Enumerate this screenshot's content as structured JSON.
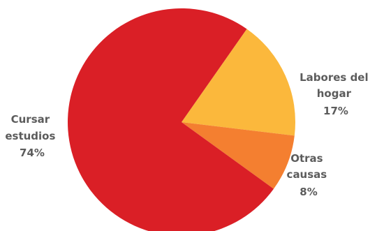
{
  "chart_data": {
    "type": "pie",
    "slices": [
      {
        "name": "Labores del hogar",
        "label_lines": [
          "Labores del",
          "hogar"
        ],
        "pct_text": "17%",
        "value": 17,
        "color": "#fbb83c"
      },
      {
        "name": "Otras causas",
        "label_lines": [
          "Otras",
          "causas"
        ],
        "pct_text": "8%",
        "value": 8,
        "color": "#f47f30"
      },
      {
        "name": "Cursar estudios",
        "label_lines": [
          "Cursar",
          "estudios"
        ],
        "pct_text": "74%",
        "value": 74,
        "color": "#da1f26"
      }
    ],
    "start_angle_deg": 55,
    "direction": "clockwise",
    "label_color": "#5c5c5c"
  }
}
